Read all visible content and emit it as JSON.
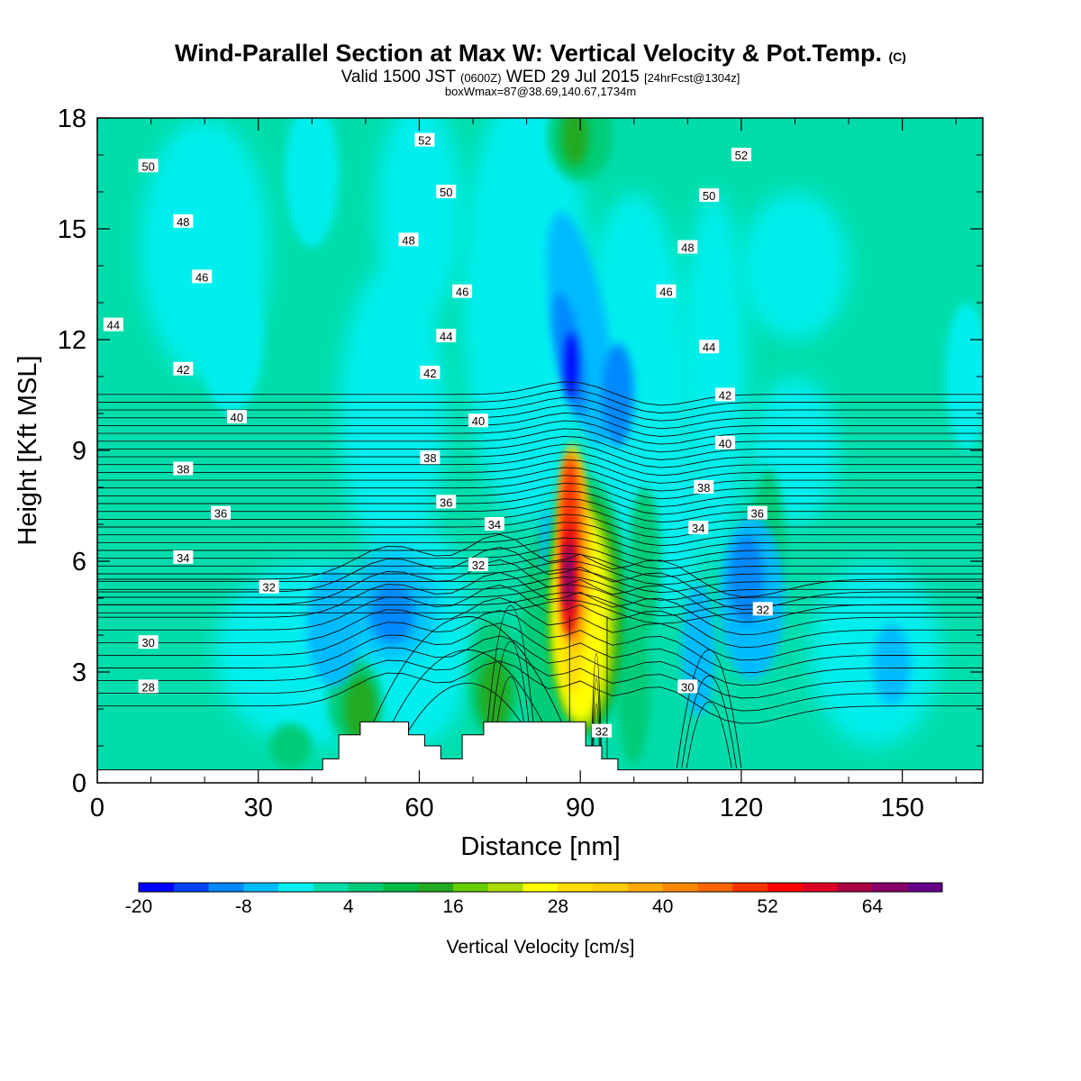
{
  "title": {
    "main": "Wind-Parallel Section at Max W: Vertical Velocity & Pot.Temp.",
    "copyright": "(C)",
    "valid_prefix": "Valid 1500 JST",
    "valid_z": "(0600Z)",
    "valid_date": "WED 29 Jul 2015",
    "forecast": "[24hrFcst@1304z]",
    "box": "boxWmax=87@38.69,140.67,1734m"
  },
  "colors": {
    "wpos1": "#00ddaa",
    "wpos2": "#00cc77",
    "wpos3": "#00bb44",
    "wpos4": "#22aa22"
  },
  "chart_data": {
    "type": "heatmap",
    "xlabel": "Distance [nm]",
    "ylabel": "Height [Kft MSL]",
    "xlim": [
      0,
      165
    ],
    "ylim": [
      0,
      18
    ],
    "x_ticks": [
      "0",
      "30",
      "60",
      "90",
      "120",
      "150"
    ],
    "y_ticks": [
      "0",
      "3",
      "6",
      "9",
      "12",
      "15",
      "18"
    ],
    "colorbar": {
      "label": "Vertical Velocity [cm/s]",
      "tick_labels": [
        "-20",
        "-8",
        "4",
        "16",
        "28",
        "40",
        "52",
        "64"
      ],
      "levels": [
        -20,
        -16,
        -12,
        -8,
        -4,
        0,
        4,
        8,
        12,
        16,
        20,
        24,
        28,
        32,
        36,
        40,
        44,
        48,
        52,
        56,
        60,
        64,
        68,
        72
      ],
      "colors": [
        "#0000ff",
        "#0044ff",
        "#0088ff",
        "#00bbff",
        "#00eeee",
        "#00ddaa",
        "#00cc77",
        "#00bb44",
        "#22aa22",
        "#66cc00",
        "#aadd00",
        "#ffff00",
        "#ffdd00",
        "#ffcc00",
        "#ffaa00",
        "#ff8800",
        "#ff6600",
        "#ff3300",
        "#ff0000",
        "#dd0022",
        "#aa0044",
        "#880066",
        "#660088"
      ]
    },
    "terrain": [
      [
        0,
        0.35
      ],
      [
        42,
        0.35
      ],
      [
        42,
        0.65
      ],
      [
        45,
        0.65
      ],
      [
        45,
        1.3
      ],
      [
        49,
        1.3
      ],
      [
        49,
        1.65
      ],
      [
        58,
        1.65
      ],
      [
        58,
        1.3
      ],
      [
        61,
        1.3
      ],
      [
        61,
        1.0
      ],
      [
        64,
        1.0
      ],
      [
        64,
        0.65
      ],
      [
        68,
        0.65
      ],
      [
        68,
        1.3
      ],
      [
        72,
        1.3
      ],
      [
        72,
        1.65
      ],
      [
        91,
        1.65
      ],
      [
        91,
        1.0
      ],
      [
        94,
        1.0
      ],
      [
        94,
        0.65
      ],
      [
        97,
        0.65
      ],
      [
        97,
        0.35
      ],
      [
        165,
        0.35
      ]
    ],
    "wind_max_w": {
      "x": 88,
      "y": 5.6,
      "value": 87
    },
    "theta_labels": [
      {
        "text": "52",
        "x": 61,
        "y": 17.4
      },
      {
        "text": "52",
        "x": 120,
        "y": 17.0
      },
      {
        "text": "50",
        "x": 9.5,
        "y": 16.7
      },
      {
        "text": "50",
        "x": 65,
        "y": 16.0
      },
      {
        "text": "50",
        "x": 114,
        "y": 15.9
      },
      {
        "text": "48",
        "x": 16,
        "y": 15.2
      },
      {
        "text": "48",
        "x": 58,
        "y": 14.7
      },
      {
        "text": "48",
        "x": 110,
        "y": 14.5
      },
      {
        "text": "46",
        "x": 19.5,
        "y": 13.7
      },
      {
        "text": "46",
        "x": 68,
        "y": 13.3
      },
      {
        "text": "46",
        "x": 106,
        "y": 13.3
      },
      {
        "text": "44",
        "x": 3,
        "y": 12.4
      },
      {
        "text": "44",
        "x": 65,
        "y": 12.1
      },
      {
        "text": "44",
        "x": 114,
        "y": 11.8
      },
      {
        "text": "42",
        "x": 16,
        "y": 11.2
      },
      {
        "text": "42",
        "x": 62,
        "y": 11.1
      },
      {
        "text": "42",
        "x": 117,
        "y": 10.5
      },
      {
        "text": "40",
        "x": 26,
        "y": 9.9
      },
      {
        "text": "40",
        "x": 71,
        "y": 9.8
      },
      {
        "text": "40",
        "x": 117,
        "y": 9.2
      },
      {
        "text": "38",
        "x": 16,
        "y": 8.5
      },
      {
        "text": "38",
        "x": 62,
        "y": 8.8
      },
      {
        "text": "38",
        "x": 113,
        "y": 8.0
      },
      {
        "text": "36",
        "x": 23,
        "y": 7.3
      },
      {
        "text": "36",
        "x": 65,
        "y": 7.6
      },
      {
        "text": "36",
        "x": 123,
        "y": 7.3
      },
      {
        "text": "34",
        "x": 16,
        "y": 6.1
      },
      {
        "text": "34",
        "x": 74,
        "y": 7.0
      },
      {
        "text": "34",
        "x": 112,
        "y": 6.9
      },
      {
        "text": "32",
        "x": 32,
        "y": 5.3
      },
      {
        "text": "32",
        "x": 71,
        "y": 5.9
      },
      {
        "text": "32",
        "x": 124,
        "y": 4.7
      },
      {
        "text": "32",
        "x": 94,
        "y": 1.4
      },
      {
        "text": "30",
        "x": 9.5,
        "y": 3.8
      },
      {
        "text": "30",
        "x": 110,
        "y": 2.6
      },
      {
        "text": "28",
        "x": 9.5,
        "y": 2.6
      }
    ]
  }
}
